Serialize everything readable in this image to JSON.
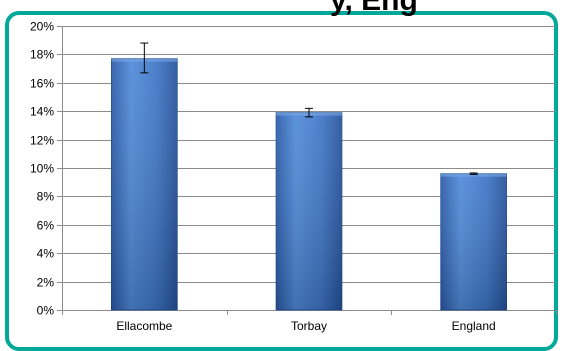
{
  "header": {
    "title_fragment": "y, Eng"
  },
  "chart_data": {
    "type": "bar",
    "categories": [
      "Ellacombe",
      "Torbay",
      "England"
    ],
    "values": [
      17.7,
      13.9,
      9.6
    ],
    "error_bars": [
      {
        "low": 16.7,
        "high": 18.8
      },
      {
        "low": 13.6,
        "high": 14.2
      },
      {
        "low": 9.55,
        "high": 9.65
      }
    ],
    "ylim": [
      0,
      20
    ],
    "ytick_step": 2,
    "ytick_suffix": "%",
    "grid": true,
    "bar_color": "#3a6fbf",
    "panel_border_color": "#00a89a"
  }
}
